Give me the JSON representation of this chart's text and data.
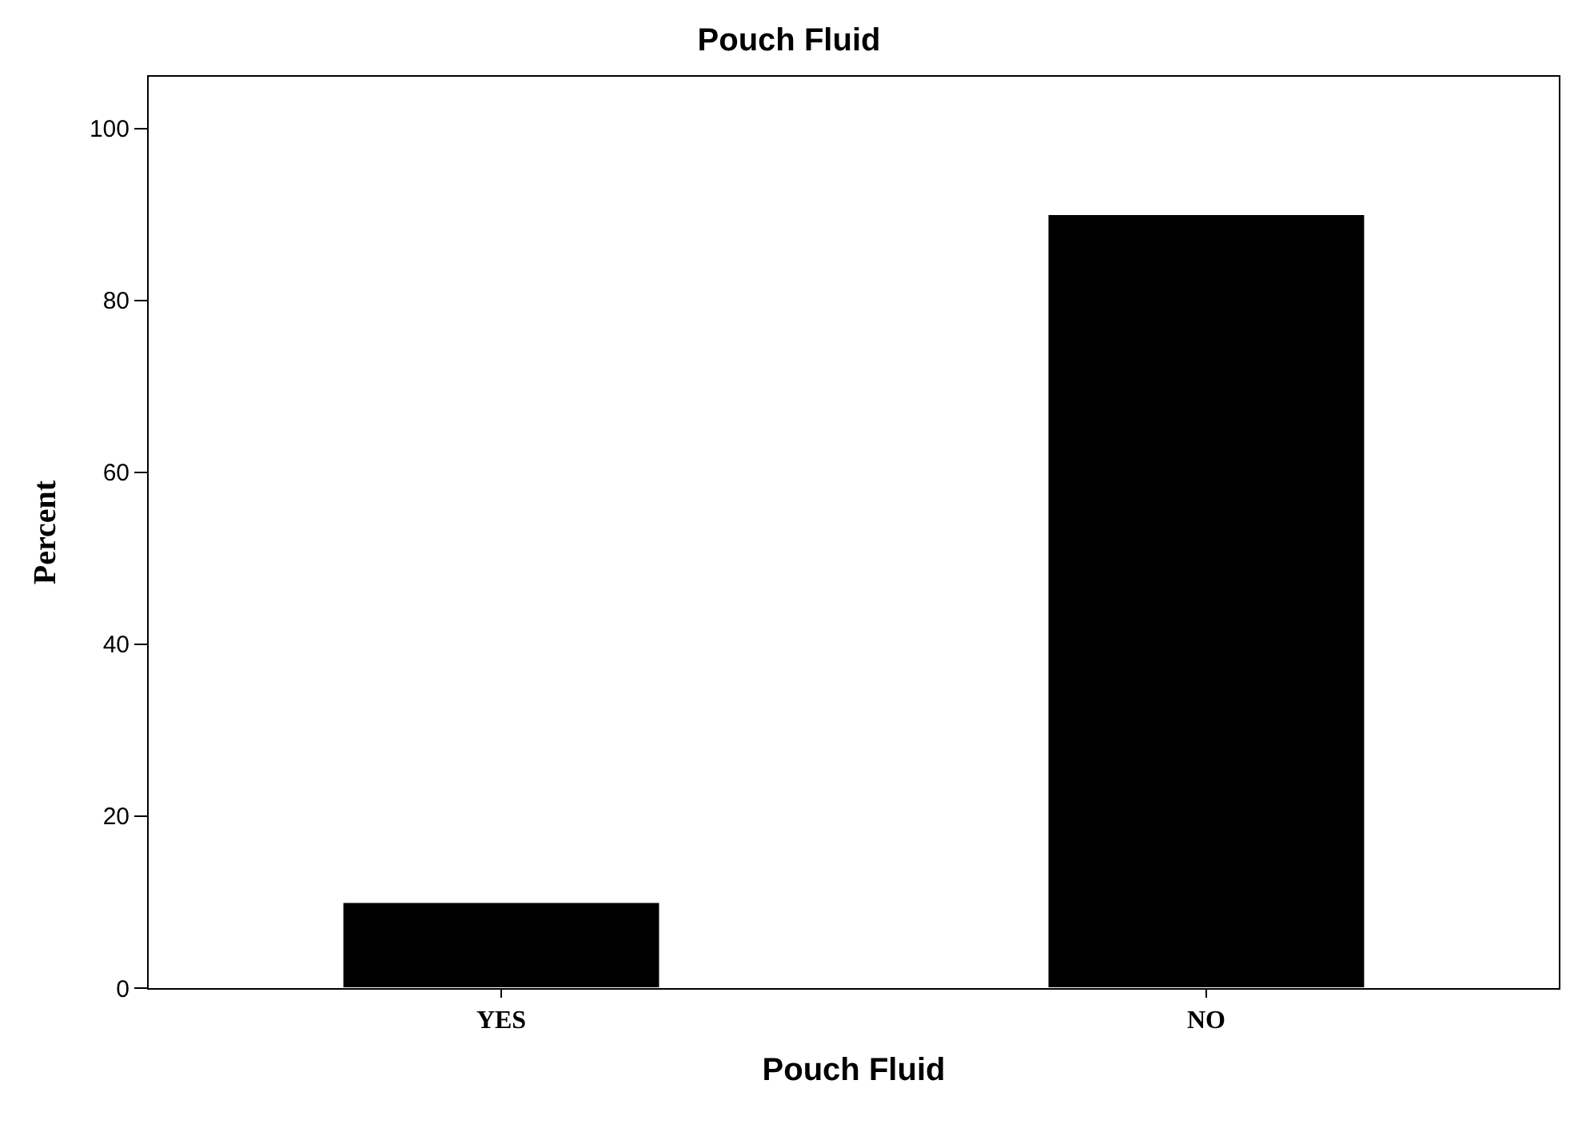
{
  "chart_data": {
    "type": "bar",
    "title": "Pouch Fluid",
    "xlabel": "Pouch Fluid",
    "ylabel": "Percent",
    "categories": [
      "YES",
      "NO"
    ],
    "values": [
      10,
      90
    ],
    "color": "#000000",
    "ylim": [
      0,
      106
    ],
    "yticks": [
      0,
      20,
      40,
      60,
      80,
      100
    ]
  }
}
